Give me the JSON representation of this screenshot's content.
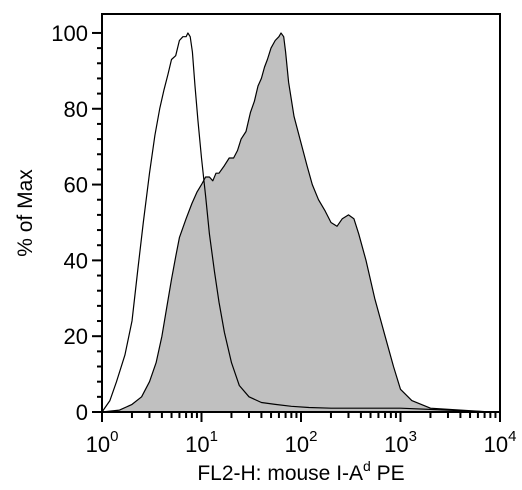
{
  "chart_data": {
    "type": "area",
    "xlabel_main": "FL2-H: mouse I-A",
    "xlabel_sup": "d",
    "xlabel_tail": " PE",
    "ylabel": "% of Max",
    "xscale": "log",
    "xlim": [
      1,
      10000
    ],
    "ylim": [
      0,
      105
    ],
    "x_ticks": [
      {
        "base": "10",
        "exp": "0",
        "value": 1
      },
      {
        "base": "10",
        "exp": "1",
        "value": 10
      },
      {
        "base": "10",
        "exp": "2",
        "value": 100
      },
      {
        "base": "10",
        "exp": "3",
        "value": 1000
      },
      {
        "base": "10",
        "exp": "4",
        "value": 10000
      }
    ],
    "y_ticks": [
      "0",
      "20",
      "40",
      "60",
      "80",
      "100"
    ],
    "grid": false,
    "series": [
      {
        "style": "outline",
        "color": "#000000",
        "x": [
          1,
          1.2,
          1.4,
          1.7,
          2.0,
          2.3,
          2.6,
          3.0,
          3.4,
          3.8,
          4.2,
          4.6,
          5.0,
          5.5,
          6.0,
          6.5,
          7.0,
          7.3,
          7.7,
          8.1,
          8.6,
          9.2,
          10,
          11,
          12,
          13.5,
          15,
          17,
          20,
          24,
          30,
          40,
          55,
          80,
          120,
          200,
          400,
          1000,
          3000,
          8000
        ],
        "y": [
          0,
          3,
          8,
          15,
          24,
          38,
          50,
          63,
          73,
          80,
          85,
          89,
          93,
          94,
          98,
          99,
          99,
          100,
          99,
          95,
          86,
          77,
          67,
          57,
          47,
          37,
          29,
          21,
          13,
          7,
          4,
          2.5,
          2,
          1.5,
          1.2,
          1,
          1,
          1,
          0.5,
          0
        ]
      },
      {
        "style": "filled",
        "color": "#c0c0c0",
        "x": [
          1,
          1.5,
          2.0,
          2.5,
          3.0,
          3.5,
          4.0,
          4.5,
          5.0,
          5.5,
          6.0,
          7.0,
          8.0,
          9.0,
          10,
          11,
          12,
          13,
          14,
          15,
          17,
          19,
          21,
          23,
          25,
          28,
          31,
          34,
          37,
          40,
          43,
          46,
          50,
          55,
          60,
          63,
          67,
          70,
          75,
          85,
          100,
          115,
          130,
          150,
          175,
          200,
          230,
          260,
          300,
          340,
          380,
          450,
          550,
          700,
          850,
          1000,
          1300,
          2000,
          4000,
          8000
        ],
        "y": [
          0,
          0.5,
          2,
          4,
          8,
          13,
          20,
          28,
          35,
          41,
          46,
          51,
          55,
          58,
          60,
          62,
          62,
          61,
          63,
          63,
          65,
          67,
          67,
          69,
          72,
          74,
          79,
          82,
          86,
          88,
          91,
          93,
          96,
          98,
          99,
          100,
          99,
          95,
          87,
          78,
          71,
          65,
          60,
          56,
          53,
          50,
          49,
          51,
          52,
          51,
          47,
          40,
          30,
          20,
          12,
          6,
          3,
          1,
          0.5,
          0
        ]
      }
    ]
  }
}
